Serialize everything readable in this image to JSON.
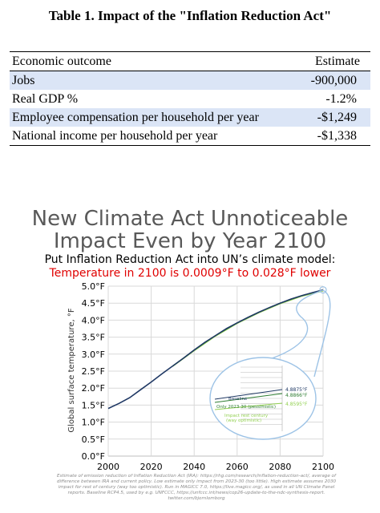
{
  "table": {
    "title": "Table 1.  Impact of the \"Inflation Reduction Act\"",
    "header": [
      "Economic outcome",
      "Estimate"
    ],
    "rows": [
      {
        "label": "Jobs",
        "value": "-900,000",
        "shaded": true
      },
      {
        "label": "Real GDP %",
        "value": "-1.2%",
        "shaded": false
      },
      {
        "label": "Employee compensation per household per year",
        "value": "-$1,249",
        "shaded": true
      },
      {
        "label": "National income per household per year",
        "value": "-$1,338",
        "shaded": false
      }
    ],
    "shade_color": "#dbe5f6"
  },
  "chart_data": {
    "type": "line",
    "title": "New Climate Act Unnoticeable Impact Even by Year 2100",
    "title_lines": [
      "New Climate Act Unnoticeable",
      "Impact Even by Year 2100"
    ],
    "subtitle": "Put Inflation Reduction Act into UN’s climate model:",
    "highlight": "Temperature in 2100 is 0.0009°F to 0.028°F lower",
    "ylabel": "Global surface temperature, °F",
    "xlabel": "",
    "xlim": [
      2000,
      2100
    ],
    "ylim": [
      0,
      5
    ],
    "x_ticks": [
      "2000",
      "2020",
      "2040",
      "2060",
      "2080",
      "2100"
    ],
    "y_ticks": [
      "0.0°F",
      "0.5°F",
      "1.0°F",
      "1.5°F",
      "2.0°F",
      "2.5°F",
      "3.0°F",
      "3.5°F",
      "4.0°F",
      "4.5°F",
      "5.0°F"
    ],
    "grid": true,
    "series": [
      {
        "name": "Baseline",
        "color": "#1f3864",
        "x": [
          2000,
          2005,
          2010,
          2015,
          2020,
          2025,
          2030,
          2035,
          2040,
          2045,
          2050,
          2055,
          2060,
          2065,
          2070,
          2075,
          2080,
          2085,
          2090,
          2095,
          2100
        ],
        "y": [
          1.4,
          1.55,
          1.72,
          1.95,
          2.18,
          2.42,
          2.65,
          2.88,
          3.12,
          3.35,
          3.55,
          3.75,
          3.92,
          4.08,
          4.23,
          4.37,
          4.5,
          4.62,
          4.72,
          4.81,
          4.89
        ]
      },
      {
        "name": "Only 2023-30 (pessimistic)",
        "color": "#2e7d32",
        "x": [
          2030,
          2040,
          2050,
          2060,
          2070,
          2080,
          2090,
          2100
        ],
        "y": [
          2.65,
          3.12,
          3.55,
          3.92,
          4.23,
          4.5,
          4.72,
          4.8866
        ]
      },
      {
        "name": "Impact rest century (way optimistic)",
        "color": "#92d050",
        "x": [
          2030,
          2040,
          2050,
          2060,
          2070,
          2080,
          2090,
          2100
        ],
        "y": [
          2.64,
          3.1,
          3.53,
          3.9,
          4.21,
          4.48,
          4.7,
          4.8595
        ]
      }
    ],
    "inset": {
      "values": [
        "4.8875°F",
        "4.8866°F",
        "4.8595°F"
      ],
      "labels": [
        "Baseline",
        "Only 2023-30 (pessimistic)",
        "Impact rest century",
        "(way optimistic)"
      ],
      "zoom_color": "#9dc3e6"
    },
    "footnote": "Estimate of emission reduction of Inflation Reduction Act (IRA): https://rhg.com/research/inflation-reduction-act/, average of difference between IRA and current policy. Low estimate only impact from 2023-30 (too little). High estimate assumes 2030 impact for rest of century (way too optimistic). Run in MAGICC 7.0, https://live.magicc.org/, as used in all UN Climate Panel reports. Baseline RCP4.5, used by e.g. UNFCCC, https://unfccc.int/news/cop26-update-to-the-ndc-synthesis-report. twitter.com/bjornlomborg"
  }
}
